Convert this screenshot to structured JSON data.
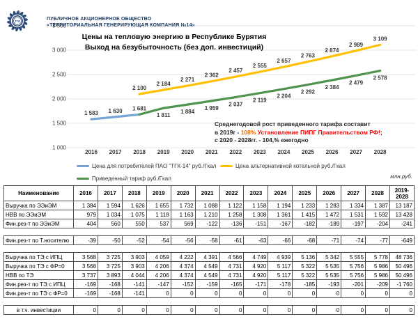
{
  "colors": {
    "brand_navy": "#17375E",
    "line_blue": "#74A3D4",
    "line_yellow": "#FFC000",
    "line_green": "#4F934F",
    "annotation_orange": "#E36C09",
    "annotation_red": "#FF0000"
  },
  "header": {
    "org_line1": "ПУБЛИЧНОЕ АКЦИОНЕРНОЕ ОБЩЕСТВО",
    "org_line2": "«ТЕРРИТОРИАЛЬНАЯ ГЕНЕРИРУЮЩАЯ КОМПАНИЯ №14»",
    "logo_text": "ТГК"
  },
  "chart": {
    "title_line1": "Цены на тепловую энергию в Республике Бурятия",
    "title_line2": "Выход на безубыточность (без доп. инвестиций)",
    "annotation": {
      "line1": "Среднегодовой рост приведенного тарифа составит",
      "line2": {
        "a": "в ",
        "b": "2019г",
        "c": " - ",
        "d": "108%",
        "e": " Установление ПИПГ Правительством РФ!",
        "f": ";"
      },
      "line3": {
        "a": "с ",
        "b": "2020 - 2028гг.",
        "c": " - ",
        "d": "104,%",
        "e": " ежегодно"
      }
    }
  },
  "chart_data": {
    "type": "line",
    "title": "Цены на тепловую энергию в Республике Бурятия. Выход на безубыточность (без доп. инвестиций)",
    "xlabel": "",
    "ylabel": "руб./Гкал",
    "x": [
      2016,
      2017,
      2018,
      2019,
      2020,
      2021,
      2022,
      2023,
      2024,
      2025,
      2026,
      2027,
      2028
    ],
    "ylim": [
      1000,
      3500
    ],
    "ytick_step": 500,
    "grid": true,
    "legend_position": "bottom",
    "series": [
      {
        "name": "Цена для потребителей ПАО \"ТГК-14\" руб./Гкал",
        "color": "#74A3D4",
        "x": [
          2016,
          2017,
          2018
        ],
        "values": [
          1583,
          1630,
          1681
        ],
        "label_position": "above",
        "skip_first_label": false
      },
      {
        "name": "Цена альтернативной котельной руб./Гкал",
        "color": "#FFC000",
        "x": [
          2018,
          2019,
          2020,
          2021,
          2022,
          2023,
          2024,
          2025,
          2026,
          2027,
          2028
        ],
        "values": [
          2100,
          2184,
          2271,
          2362,
          2457,
          2555,
          2657,
          2763,
          2874,
          2989,
          3109
        ],
        "label_position": "above",
        "skip_first_label": false
      },
      {
        "name": "Приведенный тариф руб./Гкал",
        "color": "#4F934F",
        "x": [
          2018,
          2019,
          2020,
          2021,
          2022,
          2023,
          2024,
          2025,
          2026,
          2027,
          2028
        ],
        "values": [
          1681,
          1811,
          1884,
          1959,
          2037,
          2119,
          2204,
          2292,
          2384,
          2479,
          2578
        ],
        "label_position": "below",
        "skip_first_label": true
      }
    ]
  },
  "table": {
    "units": "млн.руб.",
    "col_header": "Наименование",
    "years": [
      "2016",
      "2017",
      "2018",
      "2019",
      "2020",
      "2021",
      "2022",
      "2023",
      "2024",
      "2025",
      "2026",
      "2027",
      "2028",
      "2019-2028"
    ],
    "groups": [
      {
        "rows": [
          {
            "label": "Выручка по ЭЭиЭМ",
            "values": [
              "1 384",
              "1 594",
              "1 626",
              "1 655",
              "1 732",
              "1 088",
              "1 122",
              "1 158",
              "1 194",
              "1 233",
              "1 283",
              "1 334",
              "1 387",
              "13 187"
            ]
          },
          {
            "label": "НВВ по ЭЭиЭМ",
            "values": [
              "979",
              "1 034",
              "1 075",
              "1 118",
              "1 163",
              "1 210",
              "1 258",
              "1 308",
              "1 361",
              "1 415",
              "1 472",
              "1 531",
              "1 592",
              "13 428"
            ]
          },
          {
            "label": "Фин.рез-т по ЭЭиЭМ",
            "values": [
              "404",
              "560",
              "550",
              "537",
              "569",
              "-122",
              "-136",
              "-151",
              "-167",
              "-182",
              "-189",
              "-197",
              "-204",
              "-241"
            ]
          }
        ]
      },
      {
        "rows": [
          {
            "label": "Фин.рез-т по Т.носителю",
            "values": [
              "-39",
              "-50",
              "-52",
              "-54",
              "-56",
              "-58",
              "-61",
              "-63",
              "-66",
              "-68",
              "-71",
              "-74",
              "-77",
              "-649"
            ]
          }
        ]
      },
      {
        "rows": [
          {
            "label": "Выручка по ТЭ с ИПЦ",
            "values": [
              "3 568",
              "3 725",
              "3 903",
              "4 059",
              "4 222",
              "4 391",
              "4 566",
              "4 749",
              "4 939",
              "5 136",
              "5 342",
              "5 555",
              "5 778",
              "48 736"
            ]
          },
          {
            "label": "Выручка по ТЭ с ФР=0",
            "values": [
              "3 568",
              "3 725",
              "3 903",
              "4 206",
              "4 374",
              "4 549",
              "4 731",
              "4 920",
              "5 117",
              "5 322",
              "5 535",
              "5 756",
              "5 986",
              "50 496"
            ]
          },
          {
            "label": "НВВ по ТЭ",
            "values": [
              "3 737",
              "3 893",
              "4 044",
              "4 206",
              "4 374",
              "4 549",
              "4 731",
              "4 920",
              "5 117",
              "5 322",
              "5 535",
              "5 756",
              "5 986",
              "50 496"
            ]
          },
          {
            "label": "Фин.рез-т по ТЭ с ИПЦ",
            "values": [
              "-169",
              "-168",
              "-141",
              "-147",
              "-152",
              "-159",
              "-165",
              "-171",
              "-178",
              "-185",
              "-193",
              "-201",
              "-209",
              "-1 760"
            ]
          },
          {
            "label": "Фин.рез-т по ТЭ с ФР=0",
            "values": [
              "-169",
              "-168",
              "-141",
              "0",
              "0",
              "0",
              "0",
              "0",
              "0",
              "0",
              "0",
              "0",
              "0",
              "0"
            ]
          }
        ]
      },
      {
        "rows": [
          {
            "label": "в т.ч. инвестиции",
            "center": true,
            "values": [
              "0",
              "0",
              "0",
              "0",
              "0",
              "0",
              "0",
              "0",
              "0",
              "0",
              "0",
              "0",
              "0",
              "0"
            ]
          }
        ]
      }
    ]
  }
}
